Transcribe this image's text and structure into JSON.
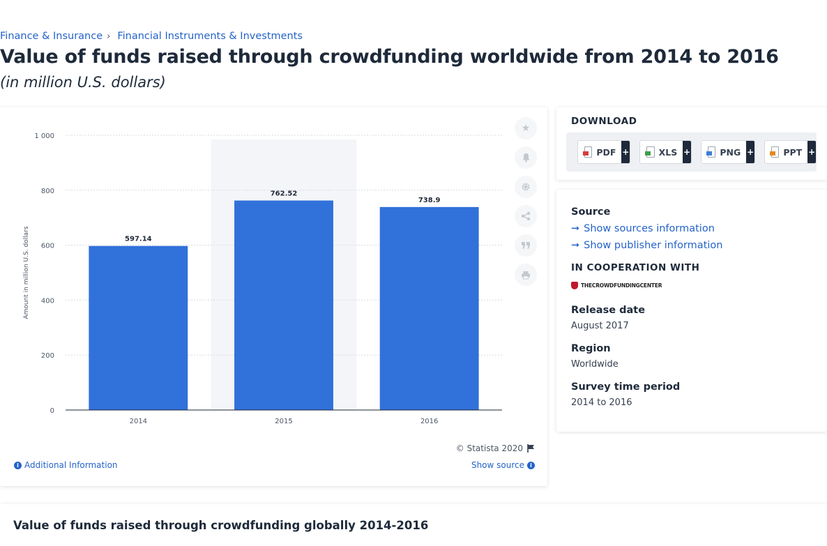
{
  "breadcrumb": {
    "items": [
      "Finance & Insurance",
      "Financial Instruments & Investments"
    ],
    "separator": "›"
  },
  "page": {
    "title": "Value of funds raised through crowdfunding worldwide from 2014 to 2016",
    "subtitle": "(in million U.S. dollars)"
  },
  "chart": {
    "credit": "© Statista 2020",
    "additional_info_label": "Additional Information",
    "show_source_label": "Show source",
    "tools": [
      "star-icon",
      "bell-icon",
      "gear-icon",
      "share-icon",
      "quote-icon",
      "print-icon"
    ]
  },
  "chart_data": {
    "type": "bar",
    "categories": [
      "2014",
      "2015",
      "2016"
    ],
    "values": [
      597.14,
      762.52,
      738.9
    ],
    "value_labels": [
      "597.14",
      "762.52",
      "738.9"
    ],
    "ylabel": "Amount in million U.S. dollars",
    "ylim": [
      0,
      1000
    ],
    "yticks": [
      0,
      200,
      400,
      600,
      800,
      1000
    ],
    "ytick_labels": [
      "0",
      "200",
      "400",
      "600",
      "800",
      "1 000"
    ],
    "highlighted_category": "2015",
    "grid": true,
    "bar_color": "#3171da"
  },
  "download": {
    "title": "DOWNLOAD",
    "buttons": [
      {
        "label": "PDF",
        "icon": "pdf-file-icon"
      },
      {
        "label": "XLS",
        "icon": "xls-file-icon"
      },
      {
        "label": "PNG",
        "icon": "png-file-icon"
      },
      {
        "label": "PPT",
        "icon": "ppt-file-icon"
      }
    ],
    "plus": "+"
  },
  "info": {
    "source_heading": "Source",
    "show_sources_link": "Show sources information",
    "show_publisher_link": "Show publisher information",
    "cooperation_heading": "IN COOPERATION WITH",
    "cooperation_logo_text": "THECROWDFUNDINGCENTER",
    "release_heading": "Release date",
    "release_value": "August 2017",
    "region_heading": "Region",
    "region_value": "Worldwide",
    "survey_heading": "Survey time period",
    "survey_value": "2014 to 2016"
  },
  "bottom": {
    "title": "Value of funds raised through crowdfunding globally 2014-2016"
  },
  "colors": {
    "link": "#2563c9",
    "bar": "#3171da",
    "highlight_band": "#f4f5f8",
    "dark": "#1e2a3a"
  }
}
